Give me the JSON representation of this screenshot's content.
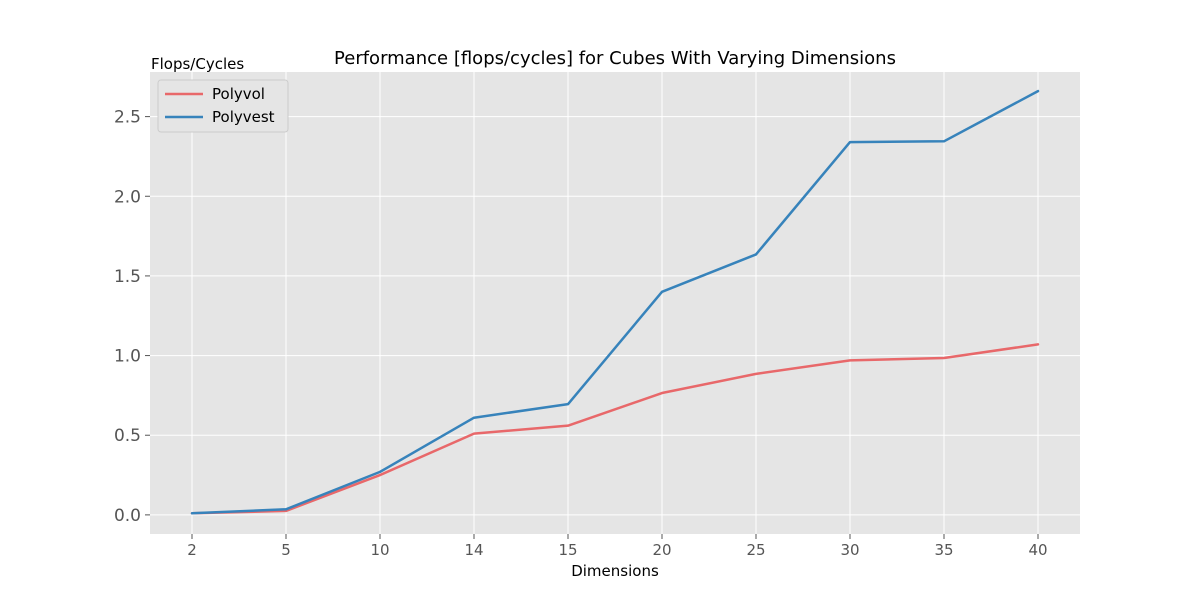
{
  "chart_data": {
    "type": "line",
    "title": "Performance [flops/cycles] for Cubes With Varying Dimensions",
    "xlabel": "Dimensions",
    "ylabel": "Flops/Cycles",
    "categories": [
      "2",
      "5",
      "10",
      "14",
      "15",
      "20",
      "25",
      "30",
      "35",
      "40"
    ],
    "ylim": [
      -0.12,
      2.78
    ],
    "yticks": [
      0.0,
      0.5,
      1.0,
      1.5,
      2.0,
      2.5
    ],
    "ytick_labels": [
      "0.0",
      "0.5",
      "1.0",
      "1.5",
      "2.0",
      "2.5"
    ],
    "grid": true,
    "legend_position": "top-left",
    "series": [
      {
        "name": "Polyvol",
        "color": "#e8686a",
        "values": [
          0.01,
          0.025,
          0.25,
          0.51,
          0.56,
          0.765,
          0.885,
          0.97,
          0.985,
          1.07
        ]
      },
      {
        "name": "Polyvest",
        "color": "#3783bb",
        "values": [
          0.01,
          0.035,
          0.27,
          0.61,
          0.695,
          1.4,
          1.635,
          2.34,
          2.345,
          2.66
        ]
      }
    ]
  },
  "style": {
    "plot_background": "#e5e5e5",
    "grid_color": "#ffffff",
    "legend_background": "#e5e5e5",
    "legend_border": "#cccccc"
  }
}
